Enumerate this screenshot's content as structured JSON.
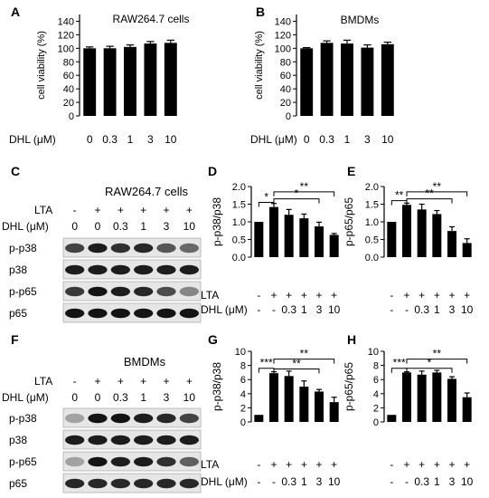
{
  "figure": {
    "panels": [
      {
        "id": "A",
        "letter": "A"
      },
      {
        "id": "B",
        "letter": "B"
      },
      {
        "id": "C",
        "letter": "C"
      },
      {
        "id": "D",
        "letter": "D"
      },
      {
        "id": "E",
        "letter": "E"
      },
      {
        "id": "F",
        "letter": "F"
      },
      {
        "id": "G",
        "letter": "G"
      },
      {
        "id": "H",
        "letter": "H"
      }
    ],
    "blots": {
      "C": {
        "title": "RAW264.7 cells",
        "lta_label": "LTA",
        "dhl_label": "DHL (μM)",
        "lta": [
          "-",
          "+",
          "+",
          "+",
          "+",
          "+"
        ],
        "dhl": [
          "0",
          "0",
          "0.3",
          "1",
          "3",
          "10"
        ],
        "rows": [
          "p-p38",
          "p38",
          "p-p65",
          "p65"
        ],
        "intensity": [
          [
            0.7,
            0.9,
            0.8,
            0.85,
            0.6,
            0.5
          ],
          [
            0.9,
            0.9,
            0.9,
            0.9,
            0.9,
            0.9
          ],
          [
            0.75,
            0.95,
            0.9,
            0.85,
            0.65,
            0.35
          ],
          [
            0.95,
            0.95,
            0.95,
            0.95,
            0.95,
            0.95
          ]
        ]
      },
      "F": {
        "title": "BMDMs",
        "lta_label": "LTA",
        "dhl_label": "DHL (μM)",
        "lta": [
          "-",
          "+",
          "+",
          "+",
          "+",
          "+"
        ],
        "dhl": [
          "0",
          "0",
          "0.3",
          "1",
          "3",
          "10"
        ],
        "rows": [
          "p-p38",
          "p38",
          "p-p65",
          "p65"
        ],
        "intensity": [
          [
            0.2,
            0.95,
            0.95,
            0.9,
            0.85,
            0.7
          ],
          [
            0.9,
            0.9,
            0.9,
            0.9,
            0.9,
            0.9
          ],
          [
            0.2,
            0.95,
            0.9,
            0.9,
            0.8,
            0.55
          ],
          [
            0.85,
            0.85,
            0.85,
            0.85,
            0.85,
            0.85
          ]
        ]
      }
    }
  },
  "chart_data": [
    {
      "panel": "A",
      "type": "bar",
      "title": "RAW264.7 cells",
      "ylabel": "cell viability (%)",
      "ylim": [
        0,
        150
      ],
      "yticks": [
        "0",
        "20",
        "40",
        "60",
        "80",
        "100",
        "120",
        "140"
      ],
      "categories": [
        "0",
        "0.3",
        "1",
        "3",
        "10"
      ],
      "values": [
        100,
        100,
        102,
        107,
        108
      ],
      "errors": [
        2,
        3,
        3,
        3,
        4
      ],
      "xlabel": "DHL (μM)"
    },
    {
      "panel": "B",
      "type": "bar",
      "title": "BMDMs",
      "ylabel": "cell viability (%)",
      "ylim": [
        0,
        150
      ],
      "yticks": [
        "0",
        "20",
        "40",
        "60",
        "80",
        "100",
        "120",
        "140"
      ],
      "categories": [
        "0",
        "0.3",
        "1",
        "3",
        "10"
      ],
      "values": [
        100,
        108,
        107,
        101,
        106
      ],
      "errors": [
        1,
        3,
        5,
        4,
        3
      ],
      "xlabel": "DHL (μM)"
    },
    {
      "panel": "D",
      "type": "bar",
      "ylabel": "p-p38/p38",
      "ylim": [
        0,
        2.0
      ],
      "yticks": [
        "0.0",
        "0.5",
        "1.0",
        "1.5",
        "2.0"
      ],
      "lta": [
        "-",
        "+",
        "+",
        "+",
        "+",
        "+"
      ],
      "dhl": [
        "-",
        "-",
        "0.3",
        "1",
        "3",
        "10"
      ],
      "values": [
        1.0,
        1.42,
        1.2,
        1.1,
        0.87,
        0.63
      ],
      "errors": [
        0,
        0.1,
        0.15,
        0.12,
        0.12,
        0.04
      ],
      "sig": [
        {
          "from": 0,
          "to": 1,
          "label": "*",
          "level": 1.55
        },
        {
          "from": 1,
          "to": 4,
          "label": "*",
          "level": 1.65
        },
        {
          "from": 1,
          "to": 5,
          "label": "**",
          "level": 1.85
        }
      ]
    },
    {
      "panel": "E",
      "type": "bar",
      "ylabel": "p-p65/p65",
      "ylim": [
        0,
        2.0
      ],
      "yticks": [
        "0.0",
        "0.5",
        "1.0",
        "1.5",
        "2.0"
      ],
      "lta": [
        "-",
        "+",
        "+",
        "+",
        "+",
        "+"
      ],
      "dhl": [
        "-",
        "-",
        "0.3",
        "1",
        "3",
        "10"
      ],
      "values": [
        1.0,
        1.48,
        1.35,
        1.22,
        0.74,
        0.4
      ],
      "errors": [
        0,
        0.05,
        0.15,
        0.1,
        0.12,
        0.12
      ],
      "sig": [
        {
          "from": 0,
          "to": 1,
          "label": "**",
          "level": 1.6
        },
        {
          "from": 1,
          "to": 4,
          "label": "**",
          "level": 1.65
        },
        {
          "from": 1,
          "to": 5,
          "label": "**",
          "level": 1.85
        }
      ]
    },
    {
      "panel": "G",
      "type": "bar",
      "ylabel": "p-p38/p38",
      "ylim": [
        0,
        10
      ],
      "yticks": [
        "0",
        "2",
        "4",
        "6",
        "8",
        "10"
      ],
      "lta": [
        "-",
        "+",
        "+",
        "+",
        "+",
        "+"
      ],
      "dhl": [
        "-",
        "-",
        "0.3",
        "1",
        "3",
        "10"
      ],
      "values": [
        1.0,
        6.9,
        6.5,
        5.0,
        4.3,
        2.8
      ],
      "errors": [
        0,
        0.2,
        0.7,
        0.8,
        0.3,
        0.7
      ],
      "sig": [
        {
          "from": 0,
          "to": 1,
          "label": "***",
          "level": 7.6
        },
        {
          "from": 1,
          "to": 4,
          "label": "**",
          "level": 7.5
        },
        {
          "from": 1,
          "to": 5,
          "label": "**",
          "level": 8.9
        }
      ]
    },
    {
      "panel": "H",
      "type": "bar",
      "ylabel": "p-p65/p65",
      "ylim": [
        0,
        10
      ],
      "yticks": [
        "0",
        "2",
        "4",
        "6",
        "8",
        "10"
      ],
      "lta": [
        "-",
        "+",
        "+",
        "+",
        "+",
        "+"
      ],
      "dhl": [
        "-",
        "-",
        "0.3",
        "1",
        "3",
        "10"
      ],
      "values": [
        1.0,
        7.0,
        6.7,
        7.0,
        6.1,
        3.5
      ],
      "errors": [
        0,
        0.1,
        0.5,
        0.3,
        0.3,
        0.6
      ],
      "sig": [
        {
          "from": 0,
          "to": 1,
          "label": "***",
          "level": 7.6
        },
        {
          "from": 1,
          "to": 4,
          "label": "*",
          "level": 7.6
        },
        {
          "from": 1,
          "to": 5,
          "label": "**",
          "level": 8.9
        }
      ]
    }
  ],
  "row_labels": {
    "lta": "LTA",
    "dhl": "DHL (μM)"
  }
}
